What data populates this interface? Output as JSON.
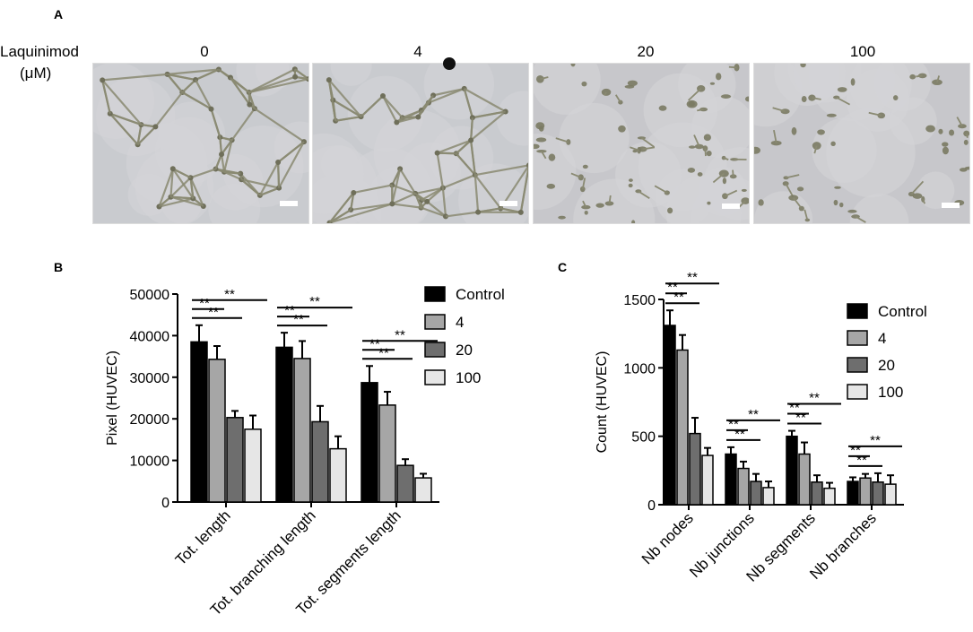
{
  "panel_a": {
    "letter": "A",
    "header_line1": "Laquinimod",
    "header_line2": "(μM)",
    "concentrations": [
      "0",
      "4",
      "20",
      "100"
    ]
  },
  "panel_b": {
    "letter": "B"
  },
  "panel_c": {
    "letter": "C"
  },
  "colors": {
    "Control": "#000000",
    "4": "#a6a6a6",
    "20": "#6e6e6e",
    "100": "#e6e6e6"
  },
  "chart_data": [
    {
      "type": "bar",
      "ylabel": "Pixel (HUVEC)",
      "categories": [
        "Tot. length",
        "Tot. branching length",
        "Tot. segments length"
      ],
      "ylim": [
        0,
        50000
      ],
      "yticks": [
        0,
        10000,
        20000,
        30000,
        40000,
        50000
      ],
      "series": [
        {
          "name": "Control",
          "values": [
            38500,
            37200,
            28700
          ],
          "errors": [
            4000,
            3500,
            4000
          ]
        },
        {
          "name": "4",
          "values": [
            34300,
            34500,
            23300
          ],
          "errors": [
            3200,
            4200,
            3200
          ]
        },
        {
          "name": "20",
          "values": [
            20300,
            19300,
            8800
          ],
          "errors": [
            1600,
            3800,
            1500
          ]
        },
        {
          "name": "100",
          "values": [
            17500,
            12800,
            5800
          ],
          "errors": [
            3300,
            3000,
            1000
          ]
        }
      ],
      "significance": [
        {
          "category": "Tot. length",
          "label": "**",
          "brackets": [
            "Control-20",
            "Control-4",
            "Control-100"
          ]
        },
        {
          "category": "Tot. branching length",
          "label": "**",
          "brackets": [
            "Control-20",
            "Control-4",
            "Control-100"
          ]
        },
        {
          "category": "Tot. segments length",
          "label": "**",
          "brackets": [
            "Control-20",
            "Control-4",
            "Control-100"
          ]
        }
      ],
      "legend_position": "top-right"
    },
    {
      "type": "bar",
      "ylabel": "Count (HUVEC)",
      "categories": [
        "Nb nodes",
        "Nb junctions",
        "Nb segments",
        "Nb branches"
      ],
      "ylim": [
        0,
        1500
      ],
      "yticks": [
        0,
        500,
        1000,
        1500
      ],
      "series": [
        {
          "name": "Control",
          "values": [
            1310,
            370,
            500,
            170
          ],
          "errors": [
            110,
            50,
            40,
            30
          ]
        },
        {
          "name": "4",
          "values": [
            1130,
            265,
            370,
            195
          ],
          "errors": [
            110,
            50,
            85,
            30
          ]
        },
        {
          "name": "20",
          "values": [
            520,
            170,
            165,
            165
          ],
          "errors": [
            115,
            55,
            50,
            65
          ]
        },
        {
          "name": "100",
          "values": [
            360,
            125,
            120,
            150
          ],
          "errors": [
            55,
            45,
            40,
            65
          ]
        }
      ],
      "significance": [
        {
          "category": "Nb nodes",
          "label": "**",
          "brackets": [
            "Control-20",
            "Control-4",
            "Control-100"
          ]
        },
        {
          "category": "Nb junctions",
          "label": "**",
          "brackets": [
            "Control-20",
            "Control-4",
            "Control-100"
          ]
        },
        {
          "category": "Nb segments",
          "label": "**",
          "brackets": [
            "Control-20",
            "Control-4",
            "Control-100"
          ]
        },
        {
          "category": "Nb branches",
          "label": "**",
          "brackets": [
            "Control-20",
            "Control-4",
            "Control-100"
          ]
        }
      ],
      "legend_position": "top-right"
    }
  ]
}
